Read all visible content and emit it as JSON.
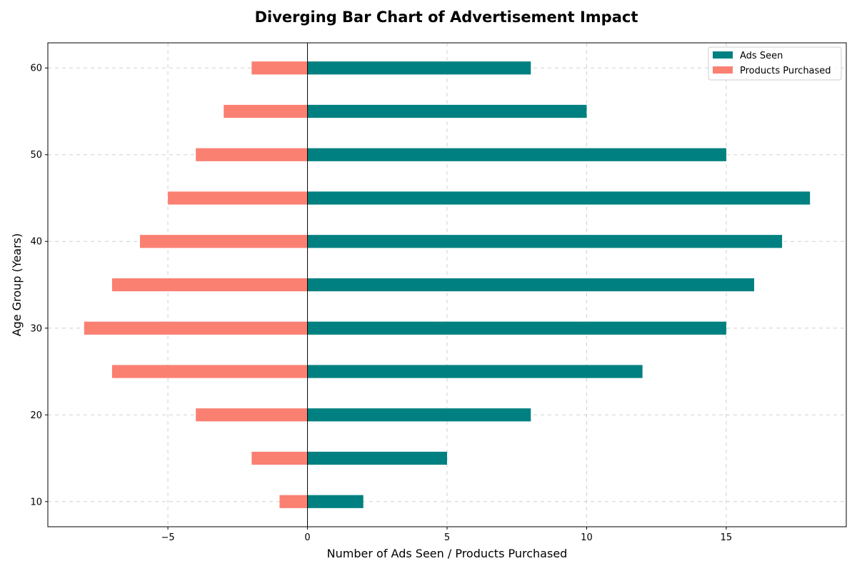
{
  "chart_data": {
    "type": "bar",
    "orientation": "horizontal",
    "diverging": true,
    "title": "Diverging Bar Chart of Advertisement Impact",
    "xlabel": "Number of Ads Seen / Products Purchased",
    "ylabel": "Age Group (Years)",
    "categories": [
      10,
      15,
      20,
      25,
      30,
      35,
      40,
      45,
      50,
      55,
      60
    ],
    "series": [
      {
        "name": "Ads Seen",
        "color": "#008080",
        "values": [
          2,
          5,
          8,
          12,
          15,
          16,
          17,
          18,
          15,
          10,
          8
        ]
      },
      {
        "name": "Products Purchased",
        "color": "#FA8072",
        "values": [
          -1,
          -2,
          -4,
          -7,
          -8,
          -7,
          -6,
          -5,
          -4,
          -3,
          -2
        ]
      }
    ],
    "xlim": [
      -9.3,
      19.3
    ],
    "ylim": [
      7.1,
      62.9
    ],
    "x_ticks": [
      -5,
      0,
      5,
      10,
      15
    ],
    "x_tick_labels": [
      "−5",
      "0",
      "5",
      "10",
      "15"
    ],
    "y_ticks": [
      10,
      20,
      30,
      40,
      50,
      60
    ],
    "y_tick_labels": [
      "10",
      "20",
      "30",
      "40",
      "50",
      "60"
    ],
    "bar_height": 1.5,
    "zero_line": true,
    "grid": true,
    "legend_position": "upper right"
  }
}
